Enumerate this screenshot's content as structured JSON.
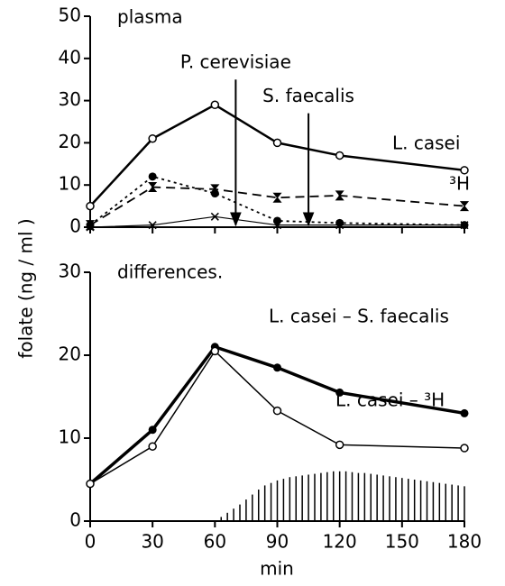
{
  "chart_data": [
    {
      "type": "line",
      "title": "plasma",
      "xlim": [
        0,
        180
      ],
      "xticks": [
        0,
        30,
        60,
        90,
        120,
        150,
        180
      ],
      "ylim": [
        0,
        50
      ],
      "yticks": [
        0,
        10,
        20,
        30,
        40,
        50
      ],
      "series": [
        {
          "name": "L. casei",
          "color": "#000",
          "line": "solid",
          "width": 2.5,
          "marker": "open",
          "x": [
            0,
            30,
            60,
            90,
            120,
            180
          ],
          "values": [
            5,
            21,
            29,
            20,
            17,
            13.5
          ]
        },
        {
          "name": "³H",
          "color": "#000",
          "line": "dashed",
          "width": 1.8,
          "marker": "hourglass",
          "x": [
            0,
            30,
            60,
            90,
            120,
            180
          ],
          "values": [
            0.5,
            9.5,
            9,
            7,
            7.5,
            5
          ]
        },
        {
          "color": "#000",
          "line": "dotted",
          "width": 1.8,
          "marker": "filled",
          "x": [
            0,
            30,
            60,
            90,
            120,
            180
          ],
          "values": [
            0.5,
            12,
            8,
            1.5,
            1,
            0.5
          ]
        },
        {
          "color": "#000",
          "line": "solid",
          "width": 1.2,
          "marker": "x",
          "x": [
            0,
            30,
            60,
            90,
            120,
            180
          ],
          "values": [
            0,
            0.5,
            2.5,
            0.5,
            0.5,
            0.5
          ]
        }
      ],
      "annotations": [
        {
          "text": "P. cerevisiae",
          "x": 70,
          "from": 35,
          "to": 0.5
        },
        {
          "text": "S. faecalis",
          "x": 105,
          "from": 27,
          "to": 0.5
        }
      ]
    },
    {
      "type": "line",
      "title": "differences.",
      "x_label": "min",
      "y_label": "folate   (ng / ml )",
      "xlim": [
        0,
        180
      ],
      "xticks": [
        0,
        30,
        60,
        90,
        120,
        150,
        180
      ],
      "ylim": [
        0,
        30
      ],
      "yticks": [
        0,
        10,
        20,
        30
      ],
      "series": [
        {
          "name": "L. casei – S. faecalis",
          "color": "#000",
          "line": "solid",
          "width": 3.5,
          "marker": "filled",
          "x": [
            0,
            30,
            60,
            90,
            120,
            180
          ],
          "values": [
            4.5,
            11,
            21,
            18.5,
            15.5,
            13
          ]
        },
        {
          "name": "L. casei – ³H",
          "color": "#000",
          "line": "solid",
          "width": 1.5,
          "marker": "open",
          "x": [
            0,
            30,
            60,
            90,
            120,
            180
          ],
          "values": [
            4.5,
            9,
            20.5,
            13.3,
            9.2,
            8.8
          ]
        },
        {
          "color": "#000",
          "line": "bars",
          "width": 1.5,
          "marker": "none",
          "x": [
            60,
            63,
            66,
            69,
            72,
            75,
            78,
            81,
            84,
            87,
            90,
            93,
            96,
            99,
            102,
            105,
            108,
            111,
            114,
            117,
            120,
            123,
            126,
            129,
            132,
            135,
            138,
            141,
            144,
            147,
            150,
            153,
            156,
            159,
            162,
            165,
            168,
            171,
            174,
            177,
            180
          ],
          "values": [
            0,
            0.5,
            1,
            1.5,
            2,
            2.6,
            3.2,
            3.8,
            4.3,
            4.6,
            4.9,
            5.1,
            5.3,
            5.4,
            5.5,
            5.6,
            5.7,
            5.8,
            5.9,
            6,
            6,
            6,
            5.9,
            5.8,
            5.8,
            5.7,
            5.6,
            5.5,
            5.4,
            5.3,
            5.2,
            5.1,
            5,
            4.9,
            4.8,
            4.7,
            4.6,
            4.5,
            4.4,
            4.3,
            4.2
          ]
        }
      ]
    }
  ]
}
